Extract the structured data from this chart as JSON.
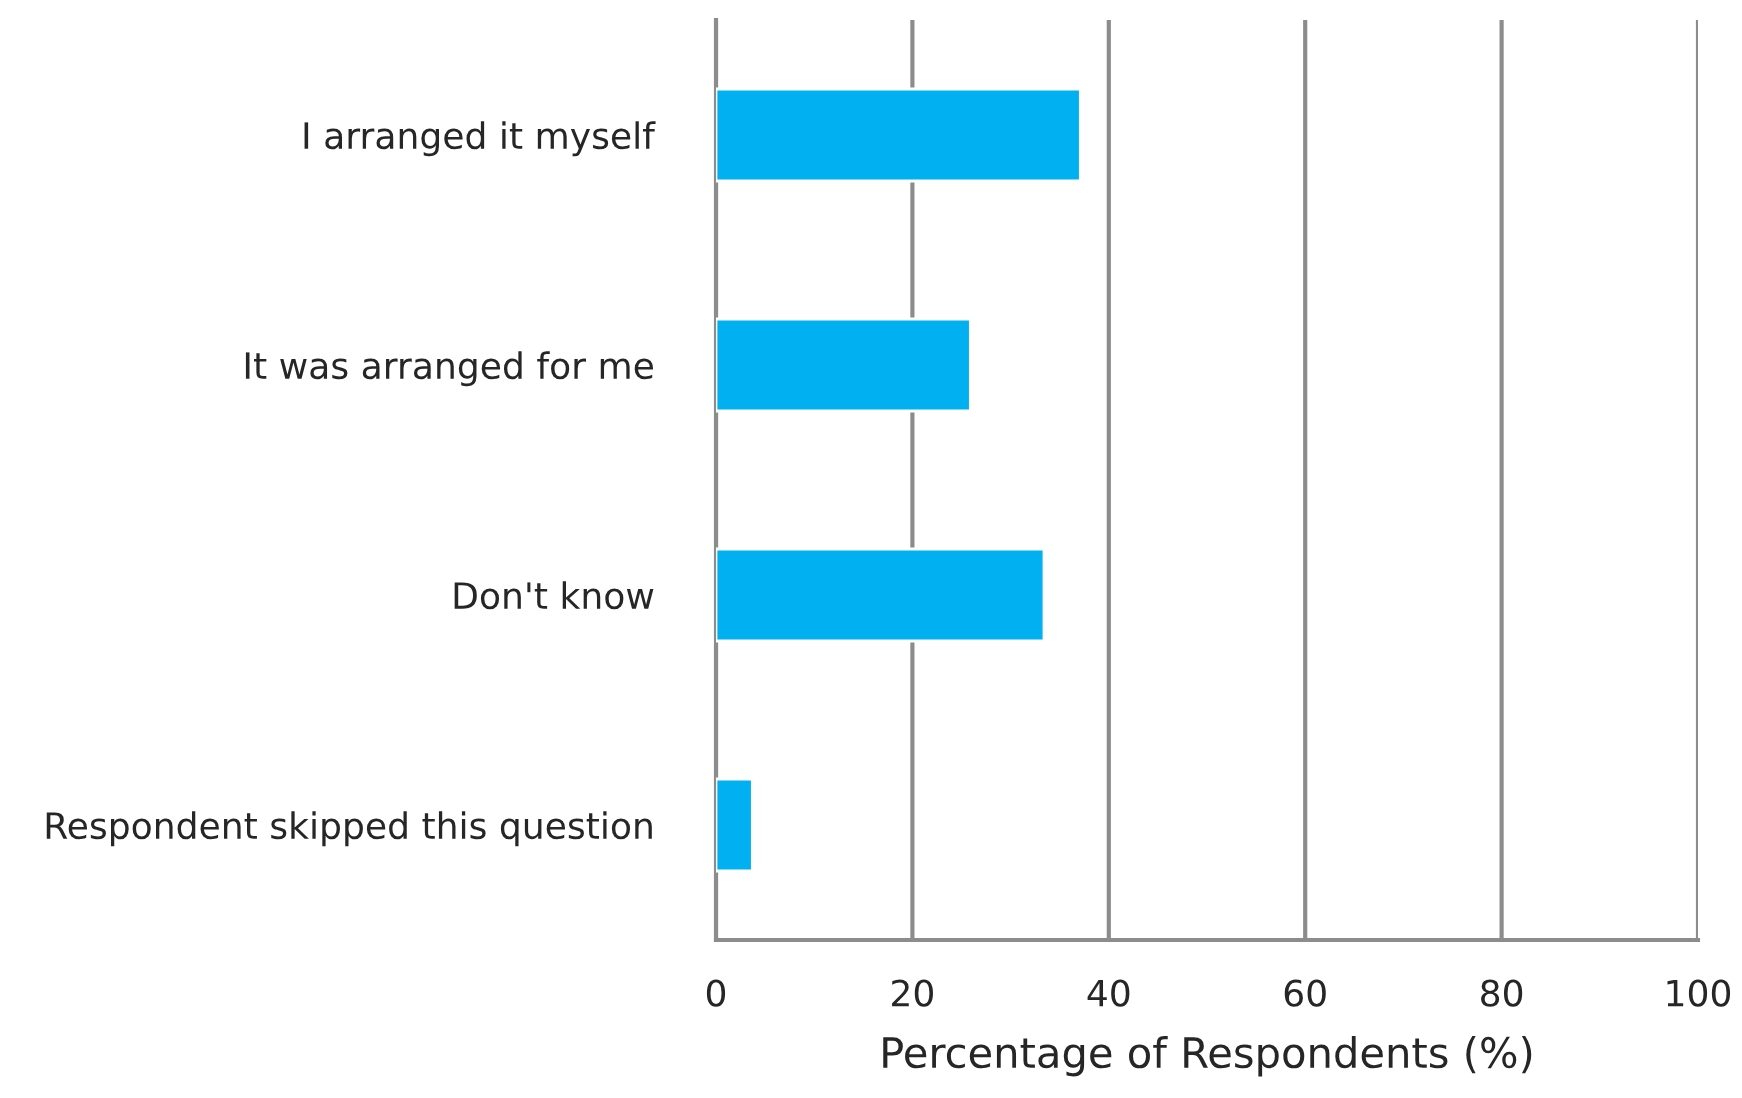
{
  "chart_data": {
    "type": "bar",
    "orientation": "horizontal",
    "xlabel": "Percentage of Respondents (%)",
    "categories": [
      "I arranged it myself",
      "It was arranged for me",
      "Don't know",
      "Respondent skipped this question"
    ],
    "values": [
      37.1,
      25.9,
      33.4,
      3.7
    ],
    "color": "#00b0f0",
    "xlim": [
      0,
      100
    ],
    "xticks": [
      0,
      20,
      40,
      60,
      80,
      100
    ],
    "grid": "x"
  }
}
